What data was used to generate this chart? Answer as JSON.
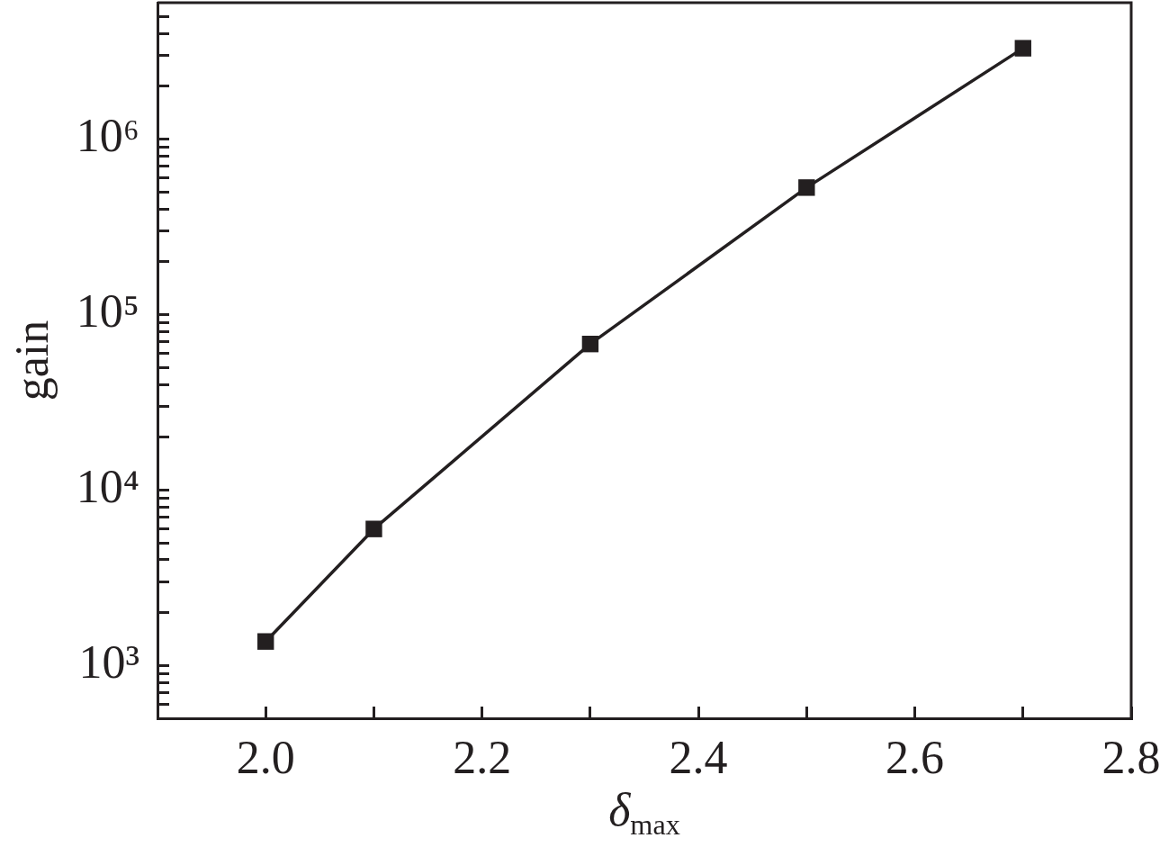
{
  "chart_data": {
    "type": "line",
    "xlabel": "δ$_{max}$",
    "ylabel": "gain",
    "x": [
      2.0,
      2.1,
      2.3,
      2.5,
      2.7
    ],
    "series": [
      {
        "color": "#231f20",
        "values": [
          1370,
          6000,
          68000,
          530000,
          3300000
        ]
      }
    ],
    "xlim": [
      1.9,
      2.8
    ],
    "xticks": [
      {
        "value": 2.0,
        "label": "2.0"
      },
      {
        "value": 2.1,
        "label": null
      },
      2.2,
      {
        "value": 2.3,
        "label": null
      },
      2.4,
      {
        "value": 2.5,
        "label": null
      },
      2.6,
      {
        "value": 2.7,
        "label": null
      },
      2.8
    ],
    "ylim": [
      500,
      6000000
    ],
    "yticks": [
      {
        "value": 600,
        "label": null
      },
      {
        "value": 700,
        "label": null
      },
      {
        "value": 800,
        "label": null
      },
      {
        "value": 900,
        "label": null
      },
      {
        "value": 1000,
        "label": "10³"
      },
      {
        "value": 2000,
        "label": null
      },
      {
        "value": 3000,
        "label": null
      },
      {
        "value": 4000,
        "label": null
      },
      {
        "value": 5000,
        "label": null
      },
      {
        "value": 6000,
        "label": null
      },
      {
        "value": 7000,
        "label": null
      },
      {
        "value": 8000,
        "label": null
      },
      {
        "value": 9000,
        "label": null
      },
      {
        "value": 10000,
        "label": "10⁴"
      },
      {
        "value": 20000,
        "label": null
      },
      {
        "value": 30000,
        "label": null
      },
      {
        "value": 40000,
        "label": null
      },
      {
        "value": 50000,
        "label": null
      },
      {
        "value": 60000,
        "label": null
      },
      {
        "value": 70000,
        "label": null
      },
      {
        "value": 80000,
        "label": null
      },
      {
        "value": 90000,
        "label": null
      },
      {
        "value": 100000,
        "label": "10⁵"
      },
      {
        "value": 200000,
        "label": null
      },
      {
        "value": 300000,
        "label": null
      },
      {
        "value": 400000,
        "label": null
      },
      {
        "value": 500000,
        "label": null
      },
      {
        "value": 600000,
        "label": null
      },
      {
        "value": 700000,
        "label": null
      },
      {
        "value": 800000,
        "label": null
      },
      {
        "value": 900000,
        "label": null
      },
      {
        "value": 1000000,
        "label": "10⁶"
      },
      {
        "value": 2000000,
        "label": null
      },
      {
        "value": 3000000,
        "label": null
      },
      {
        "value": 4000000,
        "label": null
      },
      {
        "value": 5000000,
        "label": null
      }
    ],
    "log": "y",
    "marker": "square",
    "line_style": "solid"
  }
}
